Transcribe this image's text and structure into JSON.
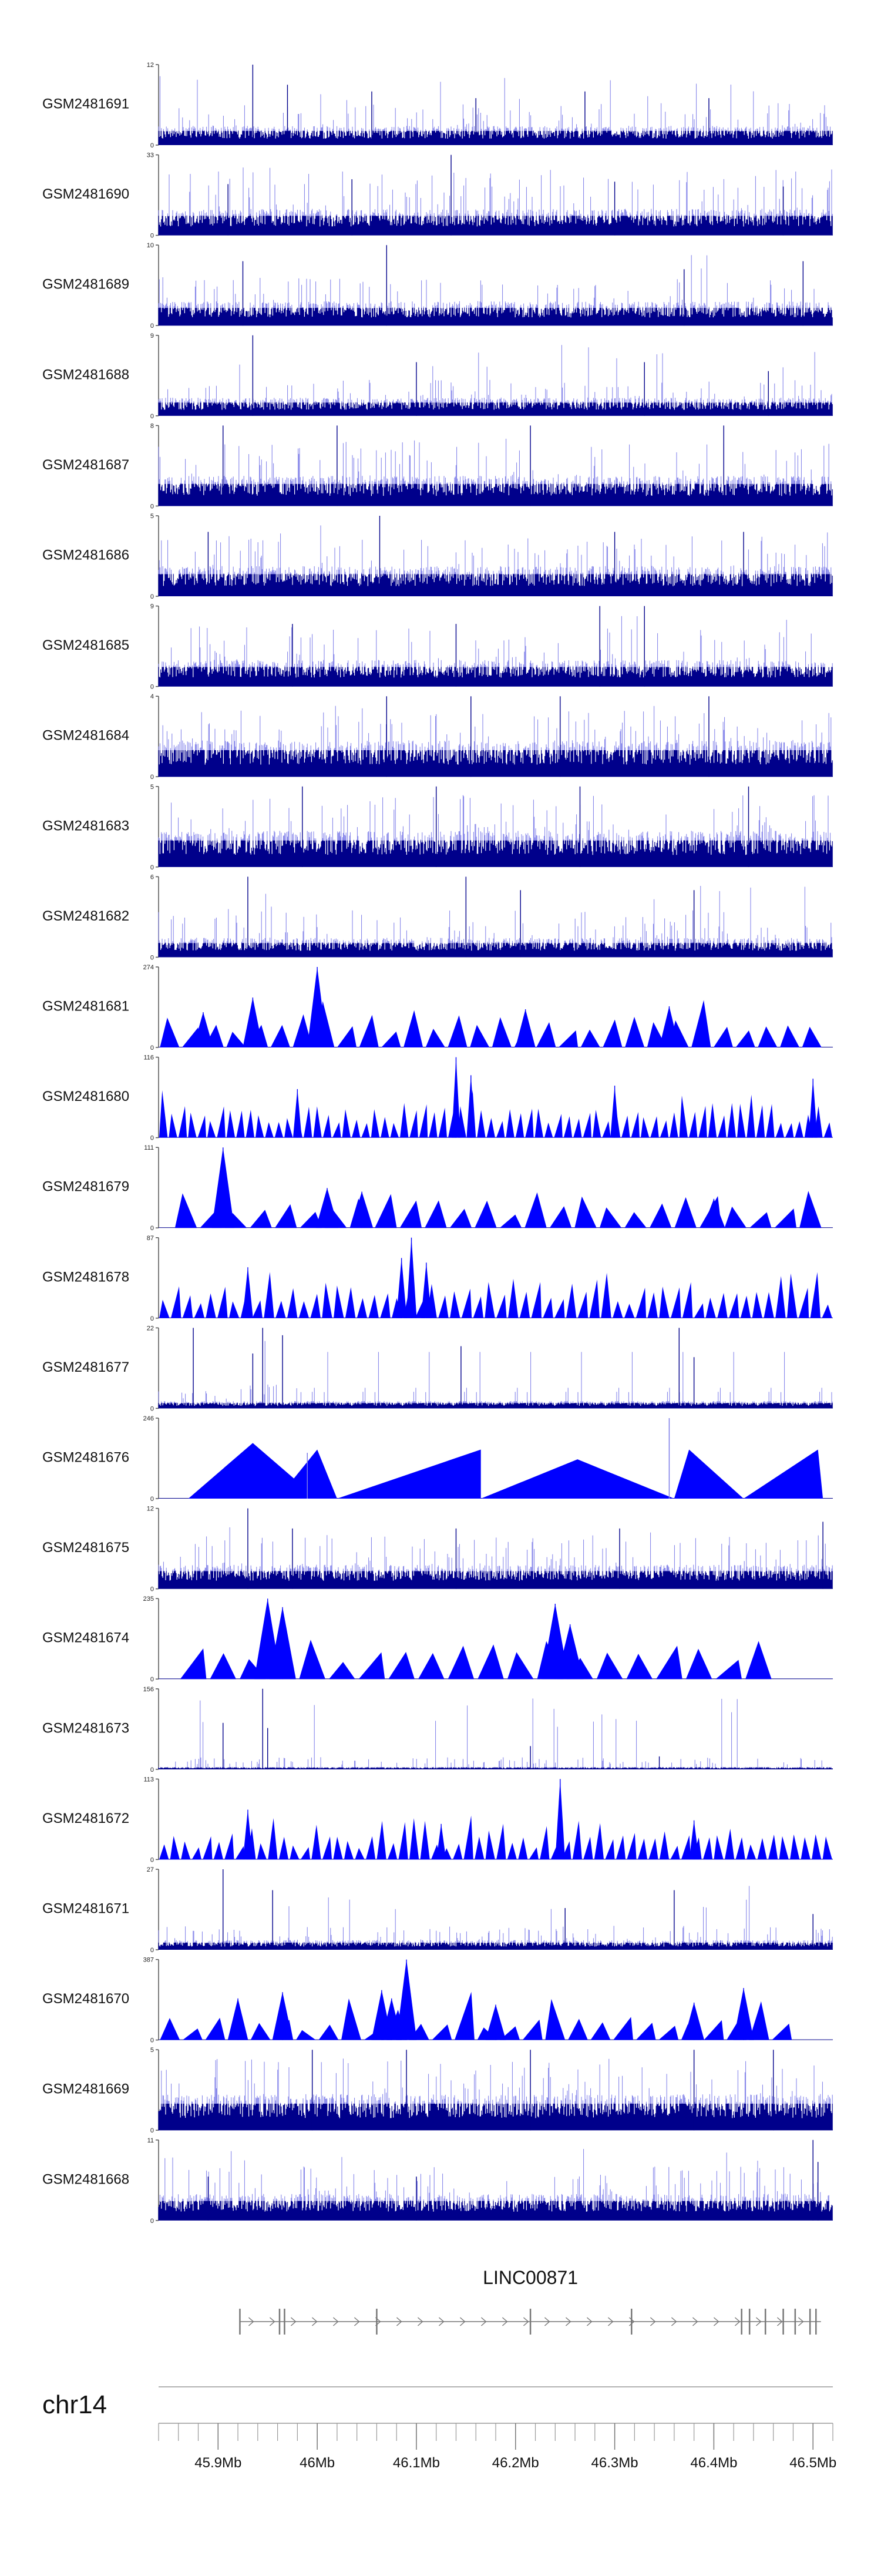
{
  "colors": {
    "dark": "#00008B",
    "bright": "#0000FF",
    "light": "#7B7BE8",
    "axis": "#555555",
    "gene": "#777777"
  },
  "chart_data": {
    "type": "area",
    "x_range_mb": [
      45.84,
      46.52
    ],
    "tracks": [
      {
        "name": "GSM2481691",
        "ymax": 12,
        "ymin": 0,
        "style": "bars",
        "seed": 11,
        "base": 0.16,
        "spike": 0.35,
        "peaks": [
          [
            45.935,
            12
          ],
          [
            45.97,
            9
          ],
          [
            46.055,
            8
          ],
          [
            46.16,
            7
          ],
          [
            46.27,
            8
          ],
          [
            46.395,
            7
          ]
        ]
      },
      {
        "name": "GSM2481690",
        "ymax": 33,
        "ymin": 0,
        "style": "bars",
        "seed": 22,
        "base": 0.22,
        "spike": 0.55,
        "peaks": [
          [
            46.135,
            33
          ],
          [
            45.91,
            21
          ],
          [
            46.035,
            23
          ],
          [
            46.3,
            22
          ],
          [
            46.47,
            20
          ]
        ]
      },
      {
        "name": "GSM2481689",
        "ymax": 10,
        "ymin": 0,
        "style": "bars",
        "seed": 33,
        "base": 0.2,
        "spike": 0.4,
        "peaks": [
          [
            46.07,
            10
          ],
          [
            45.925,
            8
          ],
          [
            46.37,
            7
          ],
          [
            46.49,
            8
          ]
        ]
      },
      {
        "name": "GSM2481688",
        "ymax": 9,
        "ymin": 0,
        "style": "bars",
        "seed": 44,
        "base": 0.15,
        "spike": 0.3,
        "peaks": [
          [
            45.935,
            9
          ],
          [
            46.1,
            6
          ],
          [
            46.33,
            6
          ],
          [
            46.455,
            5
          ]
        ]
      },
      {
        "name": "GSM2481687",
        "ymax": 8,
        "ymin": 0,
        "style": "bars",
        "seed": 55,
        "base": 0.25,
        "spike": 0.55,
        "peaks": [
          [
            45.905,
            8
          ],
          [
            46.02,
            8
          ],
          [
            46.215,
            8
          ],
          [
            46.41,
            8
          ]
        ]
      },
      {
        "name": "GSM2481686",
        "ymax": 5,
        "ymin": 0,
        "style": "bars",
        "seed": 66,
        "base": 0.25,
        "spike": 0.5,
        "peaks": [
          [
            46.063,
            5
          ],
          [
            45.89,
            4
          ],
          [
            46.3,
            4
          ],
          [
            46.43,
            4
          ]
        ]
      },
      {
        "name": "GSM2481685",
        "ymax": 9,
        "ymin": 0,
        "style": "bars",
        "seed": 77,
        "base": 0.22,
        "spike": 0.5,
        "peaks": [
          [
            46.285,
            9
          ],
          [
            46.33,
            9
          ],
          [
            45.975,
            7
          ],
          [
            46.14,
            7
          ]
        ]
      },
      {
        "name": "GSM2481684",
        "ymax": 4,
        "ymin": 0,
        "style": "bars",
        "seed": 88,
        "base": 0.3,
        "spike": 0.55,
        "peaks": [
          [
            46.07,
            4
          ],
          [
            46.155,
            4
          ],
          [
            46.245,
            4
          ],
          [
            46.395,
            4
          ]
        ]
      },
      {
        "name": "GSM2481683",
        "ymax": 5,
        "ymin": 0,
        "style": "bars",
        "seed": 99,
        "base": 0.3,
        "spike": 0.6,
        "peaks": [
          [
            45.985,
            5
          ],
          [
            46.12,
            5
          ],
          [
            46.265,
            5
          ],
          [
            46.435,
            5
          ]
        ]
      },
      {
        "name": "GSM2481682",
        "ymax": 6,
        "ymin": 0,
        "style": "bars",
        "seed": 111,
        "base": 0.16,
        "spike": 0.4,
        "peaks": [
          [
            45.93,
            6
          ],
          [
            46.15,
            6
          ],
          [
            46.205,
            5
          ],
          [
            46.38,
            5
          ]
        ]
      },
      {
        "name": "GSM2481681",
        "ymax": 274,
        "ymin": 0,
        "style": "tri",
        "seed": 122,
        "base": 0.3,
        "spike": 0.25,
        "start": 45.84,
        "end": 46.51,
        "count": 30,
        "peaks": [
          [
            46.0,
            274
          ],
          [
            45.935,
            170
          ],
          [
            46.21,
            130
          ],
          [
            46.355,
            140
          ],
          [
            45.885,
            120
          ]
        ]
      },
      {
        "name": "GSM2481680",
        "ymax": 116,
        "ymin": 0,
        "style": "tri",
        "seed": 133,
        "base": 0.32,
        "spike": 0.35,
        "start": 45.84,
        "end": 46.52,
        "count": 70,
        "peaks": [
          [
            46.14,
            116
          ],
          [
            46.155,
            90
          ],
          [
            46.3,
            75
          ],
          [
            46.5,
            85
          ],
          [
            45.98,
            70
          ]
        ]
      },
      {
        "name": "GSM2481679",
        "ymax": 111,
        "ymin": 0,
        "style": "tri",
        "seed": 144,
        "base": 0.3,
        "spike": 0.2,
        "start": 45.855,
        "end": 46.51,
        "count": 26,
        "peaks": [
          [
            45.905,
            111
          ],
          [
            46.01,
            55
          ],
          [
            46.045,
            50
          ],
          [
            46.4,
            40
          ]
        ]
      },
      {
        "name": "GSM2481678",
        "ymax": 87,
        "ymin": 0,
        "style": "tri",
        "seed": 155,
        "base": 0.3,
        "spike": 0.4,
        "start": 45.84,
        "end": 46.52,
        "count": 58,
        "peaks": [
          [
            46.095,
            87
          ],
          [
            46.085,
            65
          ],
          [
            46.11,
            60
          ],
          [
            45.93,
            55
          ]
        ]
      },
      {
        "name": "GSM2481677",
        "ymax": 22,
        "ymin": 0,
        "style": "bars",
        "seed": 166,
        "base": 0.06,
        "spike": 0.2,
        "peaks": [
          [
            45.875,
            22
          ],
          [
            45.935,
            15
          ],
          [
            45.945,
            22
          ],
          [
            45.965,
            20
          ],
          [
            46.145,
            17
          ],
          [
            46.365,
            22
          ],
          [
            46.38,
            14
          ]
        ]
      },
      {
        "name": "GSM2481676",
        "ymax": 246,
        "ymin": 0,
        "style": "manual",
        "tris": [
          [
            45.87,
            46.0,
            170
          ],
          [
            45.96,
            46.0,
            46.02,
            150
          ],
          [
            46.02,
            46.165,
            46.165,
            150
          ],
          [
            46.165,
            46.36,
            120
          ],
          [
            46.36,
            46.375,
            46.43,
            150
          ],
          [
            46.43,
            46.505,
            46.51,
            150
          ]
        ],
        "spikes": [
          [
            45.99,
            140
          ],
          [
            46.355,
            246
          ]
        ]
      },
      {
        "name": "GSM2481675",
        "ymax": 12,
        "ymin": 0,
        "style": "bars",
        "seed": 177,
        "base": 0.2,
        "spike": 0.45,
        "peaks": [
          [
            45.93,
            12
          ],
          [
            45.975,
            9
          ],
          [
            46.14,
            9
          ],
          [
            46.305,
            9
          ],
          [
            46.51,
            10
          ]
        ]
      },
      {
        "name": "GSM2481674",
        "ymax": 235,
        "ymin": 0,
        "style": "tri",
        "seed": 188,
        "base": 0.35,
        "spike": 0.1,
        "start": 45.86,
        "end": 46.46,
        "count": 20,
        "peaks": [
          [
            45.95,
            235
          ],
          [
            45.965,
            210
          ],
          [
            46.24,
            220
          ],
          [
            46.255,
            160
          ]
        ]
      },
      {
        "name": "GSM2481673",
        "ymax": 156,
        "ymin": 0,
        "style": "bars",
        "seed": 199,
        "base": 0.02,
        "spike": 0.1,
        "peaks": [
          [
            45.905,
            90
          ],
          [
            45.945,
            156
          ],
          [
            45.95,
            80
          ],
          [
            46.215,
            45
          ],
          [
            46.345,
            25
          ]
        ]
      },
      {
        "name": "GSM2481672",
        "ymax": 113,
        "ymin": 0,
        "style": "tri",
        "seed": 211,
        "base": 0.25,
        "spike": 0.25,
        "start": 45.84,
        "end": 46.52,
        "count": 62,
        "peaks": [
          [
            46.245,
            113
          ],
          [
            45.93,
            70
          ],
          [
            46.38,
            55
          ],
          [
            46.125,
            50
          ]
        ]
      },
      {
        "name": "GSM2481671",
        "ymax": 27,
        "ymin": 0,
        "style": "bars",
        "seed": 222,
        "base": 0.08,
        "spike": 0.2,
        "peaks": [
          [
            45.905,
            27
          ],
          [
            45.955,
            20
          ],
          [
            46.25,
            14
          ],
          [
            46.36,
            20
          ],
          [
            46.5,
            12
          ]
        ]
      },
      {
        "name": "GSM2481670",
        "ymax": 387,
        "ymin": 0,
        "style": "tri",
        "seed": 233,
        "base": 0.22,
        "spike": 0.15,
        "start": 45.84,
        "end": 46.48,
        "count": 28,
        "peaks": [
          [
            46.09,
            387
          ],
          [
            46.075,
            200
          ],
          [
            46.065,
            240
          ],
          [
            45.965,
            230
          ],
          [
            45.92,
            200
          ],
          [
            46.43,
            250
          ],
          [
            46.38,
            180
          ],
          [
            46.18,
            170
          ]
        ]
      },
      {
        "name": "GSM2481669",
        "ymax": 5,
        "ymin": 0,
        "style": "bars",
        "seed": 244,
        "base": 0.3,
        "spike": 0.6,
        "peaks": [
          [
            45.995,
            5
          ],
          [
            46.09,
            5
          ],
          [
            46.215,
            5
          ],
          [
            46.38,
            5
          ],
          [
            46.46,
            5
          ]
        ]
      },
      {
        "name": "GSM2481668",
        "ymax": 11,
        "ymin": 0,
        "style": "bars",
        "seed": 255,
        "base": 0.22,
        "spike": 0.45,
        "peaks": [
          [
            46.5,
            11
          ],
          [
            46.505,
            8
          ],
          [
            46.1,
            6
          ],
          [
            45.89,
            6
          ]
        ]
      }
    ],
    "gene": {
      "name": "LINC00871",
      "start": 45.922,
      "end": 46.508,
      "exons": [
        45.922,
        45.962,
        45.967,
        46.06,
        46.215,
        46.317,
        46.428,
        46.436,
        46.452,
        46.47,
        46.482,
        46.497,
        46.503
      ],
      "strand": "+"
    },
    "axis": {
      "chromosome": "chr14",
      "ticks": [
        45.9,
        46.0,
        46.1,
        46.2,
        46.3,
        46.4,
        46.5
      ],
      "tick_labels": [
        "45.9Mb",
        "46Mb",
        "46.1Mb",
        "46.2Mb",
        "46.3Mb",
        "46.4Mb",
        "46.5Mb"
      ],
      "minor_step": 0.02
    }
  }
}
